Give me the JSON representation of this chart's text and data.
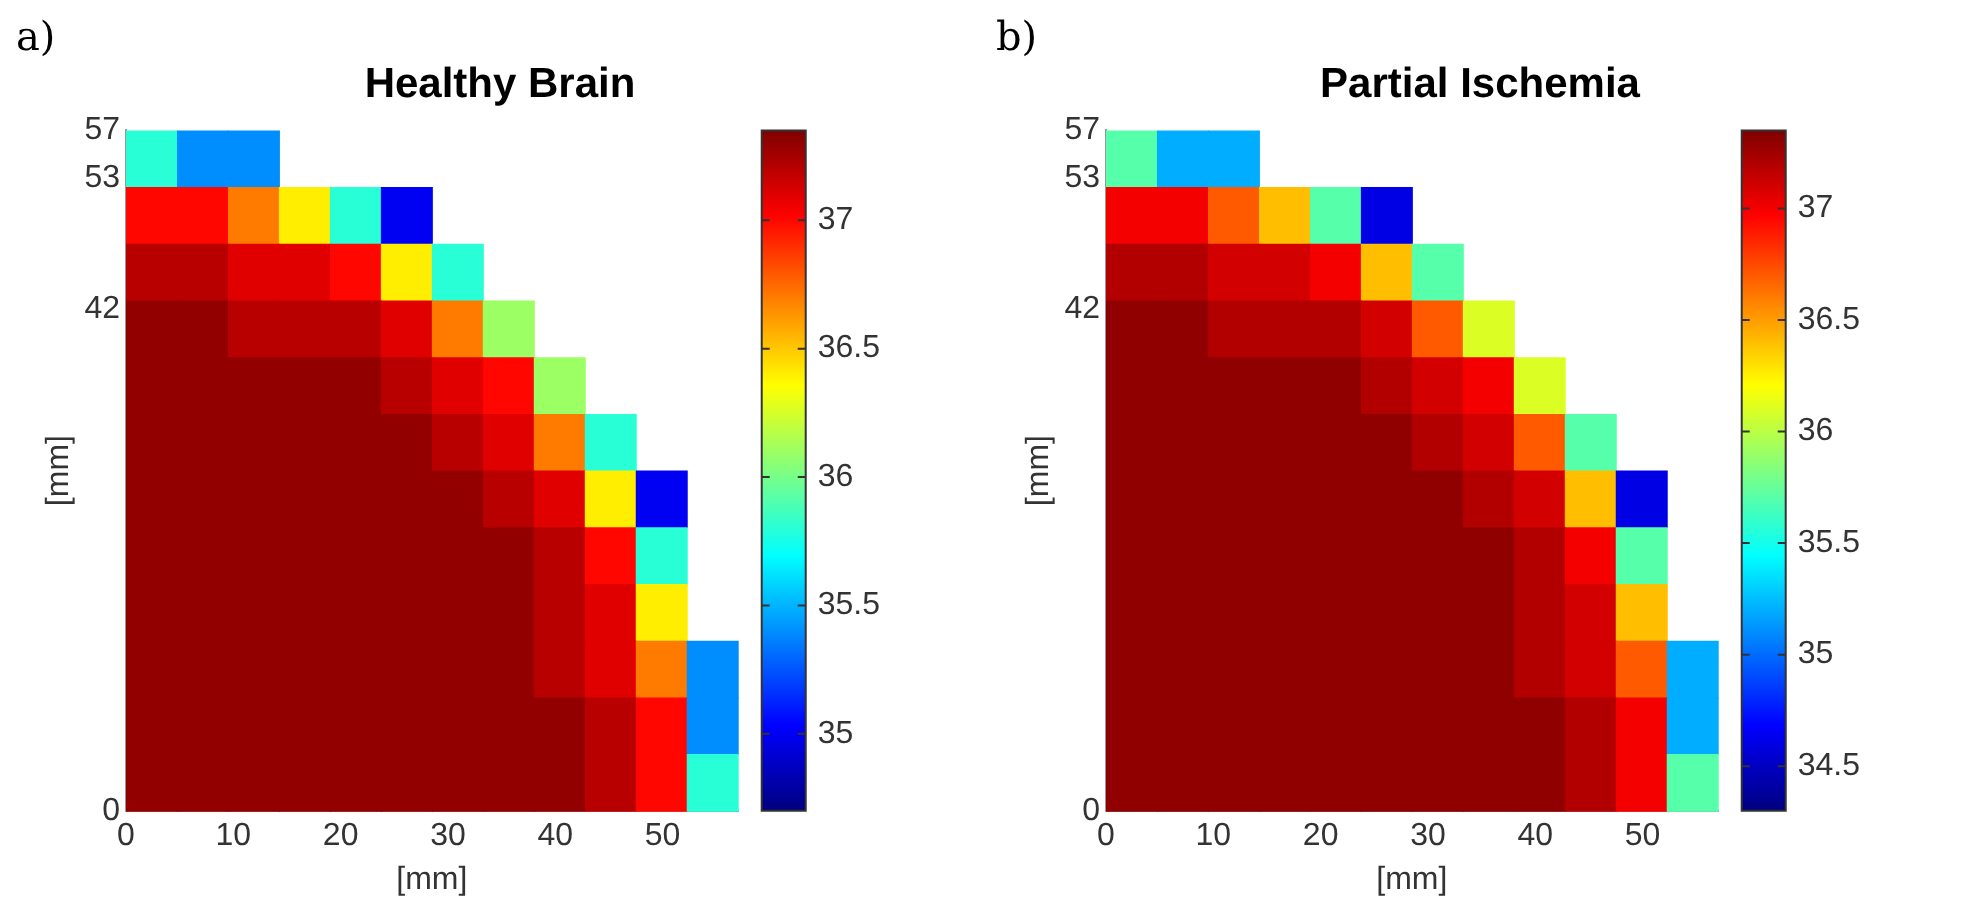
{
  "chart_data": [
    {
      "type": "heatmap",
      "title": "Healthy Brain",
      "xlabel": "[mm]",
      "ylabel": "[mm]",
      "annotations": [
        "a)"
      ],
      "x": [
        2.375,
        7.125,
        11.875,
        16.625,
        21.375,
        26.125,
        30.875,
        35.625,
        40.375,
        45.125,
        49.875,
        54.625
      ],
      "y": [
        54.625,
        49.875,
        45.125,
        40.375,
        35.625,
        30.875,
        26.125,
        21.375,
        16.625,
        11.875,
        7.125,
        2.375
      ],
      "cells": [
        [
          35.8,
          35.4,
          35.4,
          null,
          null,
          null,
          null,
          null,
          null,
          null,
          null,
          null
        ],
        [
          37.0,
          37.0,
          36.7,
          36.4,
          35.8,
          35.0,
          null,
          null,
          null,
          null,
          null,
          null
        ],
        [
          37.2,
          37.2,
          37.1,
          37.1,
          37.0,
          36.4,
          35.8,
          null,
          null,
          null,
          null,
          null
        ],
        [
          37.3,
          37.3,
          37.2,
          37.2,
          37.2,
          37.1,
          36.7,
          36.1,
          null,
          null,
          null,
          null
        ],
        [
          37.3,
          37.3,
          37.3,
          37.3,
          37.3,
          37.2,
          37.1,
          37.0,
          36.1,
          null,
          null,
          null
        ],
        [
          37.3,
          37.3,
          37.3,
          37.3,
          37.3,
          37.3,
          37.2,
          37.1,
          36.7,
          35.8,
          null,
          null
        ],
        [
          37.3,
          37.3,
          37.3,
          37.3,
          37.3,
          37.3,
          37.3,
          37.2,
          37.1,
          36.4,
          35.0,
          null
        ],
        [
          37.3,
          37.3,
          37.3,
          37.3,
          37.3,
          37.3,
          37.3,
          37.3,
          37.2,
          37.0,
          35.8,
          null
        ],
        [
          37.3,
          37.3,
          37.3,
          37.3,
          37.3,
          37.3,
          37.3,
          37.3,
          37.2,
          37.1,
          36.4,
          null
        ],
        [
          37.3,
          37.3,
          37.3,
          37.3,
          37.3,
          37.3,
          37.3,
          37.3,
          37.2,
          37.1,
          36.7,
          35.4
        ],
        [
          37.3,
          37.3,
          37.3,
          37.3,
          37.3,
          37.3,
          37.3,
          37.3,
          37.3,
          37.2,
          37.0,
          35.4
        ],
        [
          37.3,
          37.3,
          37.3,
          37.3,
          37.3,
          37.3,
          37.3,
          37.3,
          37.3,
          37.2,
          37.0,
          35.8
        ]
      ],
      "clim": [
        34.7,
        37.35
      ],
      "cticks": [
        35,
        35.5,
        36,
        36.5,
        37
      ],
      "xlim": [
        0,
        57
      ],
      "xticks": [
        0,
        10,
        20,
        30,
        40,
        50
      ],
      "ylim": [
        0,
        57
      ],
      "yticks": [
        0,
        42,
        53,
        57
      ]
    },
    {
      "type": "heatmap",
      "title": "Partial Ischemia",
      "xlabel": "[mm]",
      "ylabel": "[mm]",
      "annotations": [
        "b)"
      ],
      "x": [
        2.375,
        7.125,
        11.875,
        16.625,
        21.375,
        26.125,
        30.875,
        35.625,
        40.375,
        45.125,
        49.875,
        54.625
      ],
      "y": [
        54.625,
        49.875,
        45.125,
        40.375,
        35.625,
        30.875,
        26.125,
        21.375,
        16.625,
        11.875,
        7.125,
        2.375
      ],
      "cells": [
        [
          35.7,
          35.2,
          35.2,
          null,
          null,
          null,
          null,
          null,
          null,
          null,
          null,
          null
        ],
        [
          37.0,
          37.0,
          36.7,
          36.4,
          35.7,
          34.6,
          null,
          null,
          null,
          null,
          null,
          null
        ],
        [
          37.2,
          37.2,
          37.1,
          37.1,
          37.0,
          36.4,
          35.7,
          null,
          null,
          null,
          null,
          null
        ],
        [
          37.3,
          37.3,
          37.2,
          37.2,
          37.2,
          37.1,
          36.7,
          36.1,
          null,
          null,
          null,
          null
        ],
        [
          37.3,
          37.3,
          37.3,
          37.3,
          37.3,
          37.2,
          37.1,
          37.0,
          36.1,
          null,
          null,
          null
        ],
        [
          37.3,
          37.3,
          37.3,
          37.3,
          37.3,
          37.3,
          37.2,
          37.1,
          36.7,
          35.7,
          null,
          null
        ],
        [
          37.3,
          37.3,
          37.3,
          37.3,
          37.3,
          37.3,
          37.3,
          37.2,
          37.1,
          36.4,
          34.6,
          null
        ],
        [
          37.3,
          37.3,
          37.3,
          37.3,
          37.3,
          37.3,
          37.3,
          37.3,
          37.2,
          37.0,
          35.7,
          null
        ],
        [
          37.3,
          37.3,
          37.3,
          37.3,
          37.3,
          37.3,
          37.3,
          37.3,
          37.2,
          37.1,
          36.4,
          null
        ],
        [
          37.3,
          37.3,
          37.3,
          37.3,
          37.3,
          37.3,
          37.3,
          37.3,
          37.2,
          37.1,
          36.7,
          35.2
        ],
        [
          37.3,
          37.3,
          37.3,
          37.3,
          37.3,
          37.3,
          37.3,
          37.3,
          37.3,
          37.2,
          37.0,
          35.2
        ],
        [
          37.3,
          37.3,
          37.3,
          37.3,
          37.3,
          37.3,
          37.3,
          37.3,
          37.3,
          37.2,
          37.0,
          35.7
        ]
      ],
      "clim": [
        34.3,
        37.35
      ],
      "cticks": [
        34.5,
        35,
        35.5,
        36,
        36.5,
        37
      ],
      "xlim": [
        0,
        57
      ],
      "xticks": [
        0,
        10,
        20,
        30,
        40,
        50
      ],
      "ylim": [
        0,
        57
      ],
      "yticks": [
        0,
        42,
        53,
        57
      ]
    }
  ]
}
